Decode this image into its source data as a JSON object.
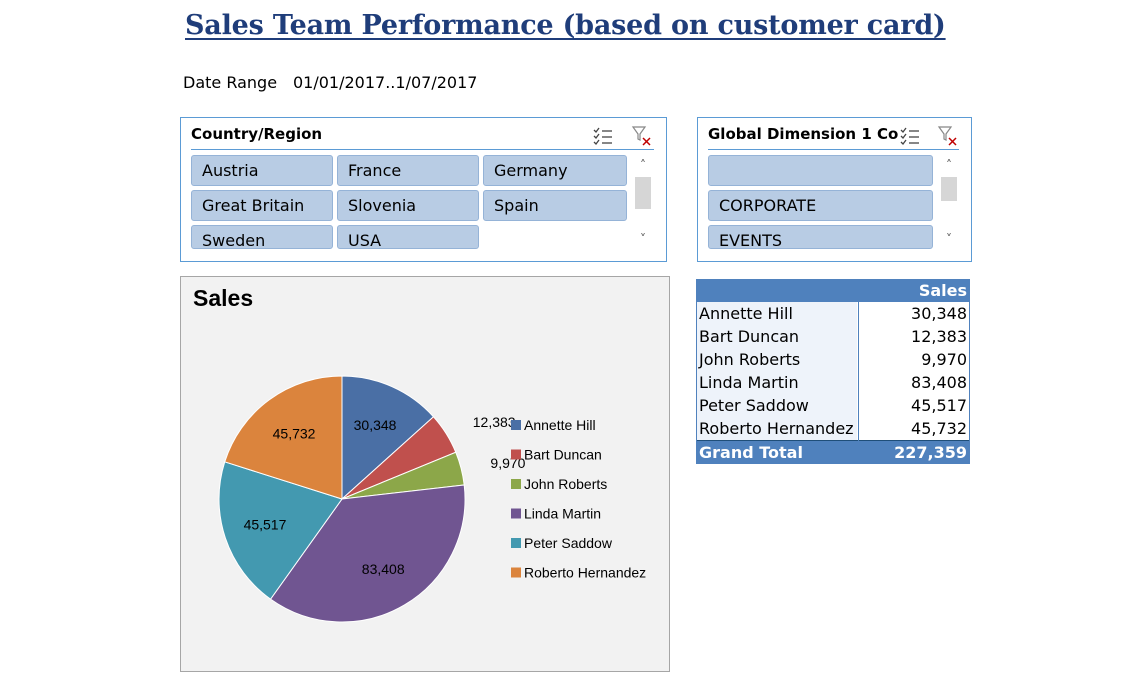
{
  "report": {
    "title": "Sales Team Performance (based on customer card)",
    "date_range_label": "Date Range",
    "date_range_value": "01/01/2017..1/07/2017"
  },
  "slicer_country": {
    "title": "Country/Region",
    "multi_select_icon": "multi-select-icon",
    "clear_filter_icon": "clear-filter-icon",
    "items": [
      "Austria",
      "France",
      "Germany",
      "Great Britain",
      "Slovenia",
      "Spain",
      "Sweden",
      "USA"
    ]
  },
  "slicer_dimension": {
    "title": "Global Dimension 1 Co...",
    "multi_select_icon": "multi-select-icon",
    "clear_filter_icon": "clear-filter-icon",
    "items": [
      "",
      "CORPORATE",
      "EVENTS"
    ]
  },
  "pivot": {
    "header_value": "Sales",
    "rows": [
      {
        "name": "Annette Hill",
        "value": "30,348"
      },
      {
        "name": "Bart Duncan",
        "value": "12,383"
      },
      {
        "name": "John Roberts",
        "value": "9,970"
      },
      {
        "name": "Linda Martin",
        "value": "83,408"
      },
      {
        "name": "Peter Saddow",
        "value": "45,517"
      },
      {
        "name": "Roberto Hernandez",
        "value": "45,732"
      }
    ],
    "total_label": "Grand Total",
    "total_value": "227,359"
  },
  "chart_data": {
    "type": "pie",
    "title": "Sales",
    "categories": [
      "Annette Hill",
      "Bart Duncan",
      "John Roberts",
      "Linda Martin",
      "Peter Saddow",
      "Roberto Hernandez"
    ],
    "values": [
      30348,
      12383,
      9970,
      83408,
      45517,
      45732
    ],
    "labels": [
      "30,348",
      "12,383",
      "9,970",
      "83,408",
      "45,517",
      "45,732"
    ],
    "colors": [
      "#4a6fa5",
      "#c0504d",
      "#8ca749",
      "#705591",
      "#4399b0",
      "#db843d"
    ],
    "legend": "right"
  }
}
